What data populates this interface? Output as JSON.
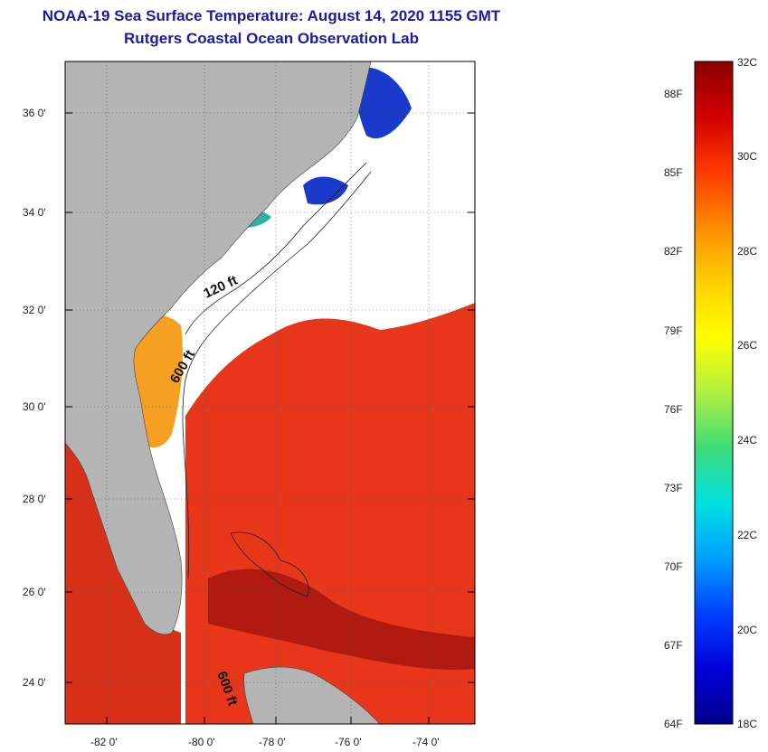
{
  "title": {
    "line1": "NOAA-19 Sea Surface Temperature:  August 14, 2020 1155 GMT",
    "line2": "Rutgers Coastal Ocean Observation Lab"
  },
  "map": {
    "lat_ticks": [
      "36 0'",
      "34 0'",
      "32 0'",
      "30 0'",
      "28 0'",
      "26 0'",
      "24 0'"
    ],
    "lon_ticks": [
      "-82 0'",
      "-80 0'",
      "-78 0'",
      "-76 0'",
      "-74 0'"
    ],
    "contour_labels": [
      "120 ft",
      "600 ft",
      "600 ft"
    ],
    "colors": {
      "land": "#b4b4b4",
      "cloud": "#ffffff",
      "warm_water": "#e8361a",
      "hot_water": "#b01a10",
      "shelf_water": "#f5a020",
      "cool_water": "#1a3acc"
    }
  },
  "colorbar": {
    "celsius_labels": [
      "32C",
      "30C",
      "28C",
      "26C",
      "24C",
      "22C",
      "20C",
      "18C"
    ],
    "fahrenheit_labels": [
      "88F",
      "85F",
      "82F",
      "79F",
      "76F",
      "73F",
      "70F",
      "67F",
      "64F"
    ],
    "stops": [
      "#8b0000",
      "#d20000",
      "#ff3a00",
      "#ff8c00",
      "#ffd000",
      "#ffff00",
      "#b0f040",
      "#3cdc78",
      "#00e0e0",
      "#00a0ff",
      "#0040ff",
      "#0000d8",
      "#00008b"
    ]
  }
}
